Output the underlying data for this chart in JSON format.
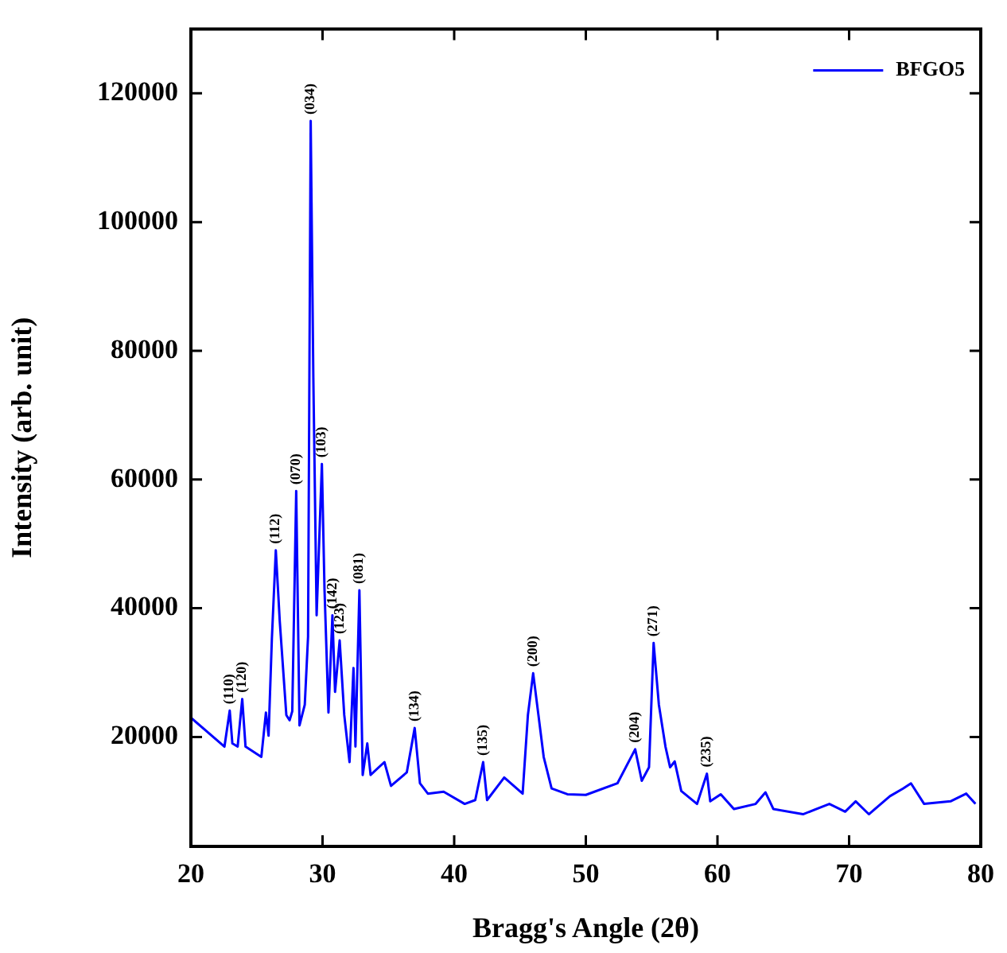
{
  "chart_data": {
    "type": "line",
    "xlabel": "Bragg's Angle (2θ)",
    "ylabel": "Intensity (arb. unit)",
    "xlim": [
      20,
      80
    ],
    "xticks": [
      20,
      30,
      40,
      50,
      60,
      70,
      80
    ],
    "ylim": [
      3000,
      130000
    ],
    "yticks": [
      20000,
      40000,
      60000,
      80000,
      100000,
      120000
    ],
    "grid": false,
    "legend": "top right",
    "marker": "none",
    "line_style": "solid",
    "series": [
      {
        "name": "BFGO5",
        "color": "#0000ff",
        "x": [
          20.0,
          22.55,
          22.95,
          23.15,
          23.55,
          23.9,
          24.15,
          25.35,
          25.7,
          25.9,
          26.15,
          26.45,
          26.75,
          27.25,
          27.5,
          27.7,
          28.0,
          28.25,
          28.65,
          28.9,
          29.1,
          29.3,
          29.55,
          29.95,
          30.15,
          30.45,
          30.75,
          30.95,
          31.3,
          31.65,
          32.05,
          32.35,
          32.5,
          32.8,
          33.05,
          33.4,
          33.65,
          34.7,
          35.2,
          36.4,
          37.0,
          37.4,
          38.0,
          39.2,
          40.8,
          41.6,
          42.2,
          42.5,
          43.8,
          45.2,
          45.6,
          46.0,
          46.4,
          46.8,
          47.4,
          48.6,
          50.0,
          52.4,
          53.75,
          54.25,
          54.8,
          55.15,
          55.55,
          56.05,
          56.4,
          56.75,
          57.25,
          58.45,
          59.2,
          59.45,
          60.25,
          61.25,
          62.9,
          63.65,
          64.25,
          66.5,
          68.5,
          69.7,
          70.5,
          71.5,
          73.1,
          74.1,
          74.7,
          75.7,
          77.7,
          78.9,
          79.6
        ],
        "values": [
          23000,
          18500,
          24100,
          19000,
          18500,
          25900,
          18500,
          16900,
          23800,
          20200,
          35200,
          49000,
          38000,
          23400,
          22600,
          24000,
          58200,
          21800,
          25000,
          35600,
          115700,
          75900,
          38900,
          62400,
          42900,
          23800,
          38900,
          27000,
          35000,
          23400,
          16100,
          30700,
          18500,
          42800,
          14100,
          19000,
          14100,
          16100,
          12400,
          14500,
          21400,
          12800,
          11200,
          11500,
          9600,
          10200,
          16100,
          10200,
          13700,
          11200,
          23400,
          29900,
          23400,
          16900,
          12000,
          11100,
          11000,
          12800,
          18100,
          13200,
          15300,
          34600,
          25000,
          18500,
          15300,
          16200,
          11600,
          9600,
          14300,
          10000,
          11100,
          8800,
          9600,
          11400,
          8800,
          8000,
          9600,
          8400,
          10000,
          8000,
          10800,
          12000,
          12800,
          9600,
          10000,
          11200,
          9600
        ]
      }
    ],
    "annotations": [
      {
        "text": "(110)",
        "x": 22.95,
        "y": 24100
      },
      {
        "text": "(120)",
        "x": 23.9,
        "y": 25900
      },
      {
        "text": "(112)",
        "x": 26.45,
        "y": 49000
      },
      {
        "text": "(070)",
        "x": 28.0,
        "y": 58200
      },
      {
        "text": "(034)",
        "x": 29.1,
        "y": 115700
      },
      {
        "text": "(103)",
        "x": 29.95,
        "y": 62400
      },
      {
        "text": "(142)",
        "x": 30.75,
        "y": 38900
      },
      {
        "text": "(123)",
        "x": 31.3,
        "y": 35000
      },
      {
        "text": "(081)",
        "x": 32.8,
        "y": 42800
      },
      {
        "text": "(134)",
        "x": 37.0,
        "y": 21400
      },
      {
        "text": "(135)",
        "x": 42.2,
        "y": 16100
      },
      {
        "text": "(200)",
        "x": 46.0,
        "y": 29900
      },
      {
        "text": "(204)",
        "x": 53.75,
        "y": 18100
      },
      {
        "text": "(271)",
        "x": 55.15,
        "y": 34600
      },
      {
        "text": "(235)",
        "x": 59.2,
        "y": 14300
      }
    ]
  }
}
